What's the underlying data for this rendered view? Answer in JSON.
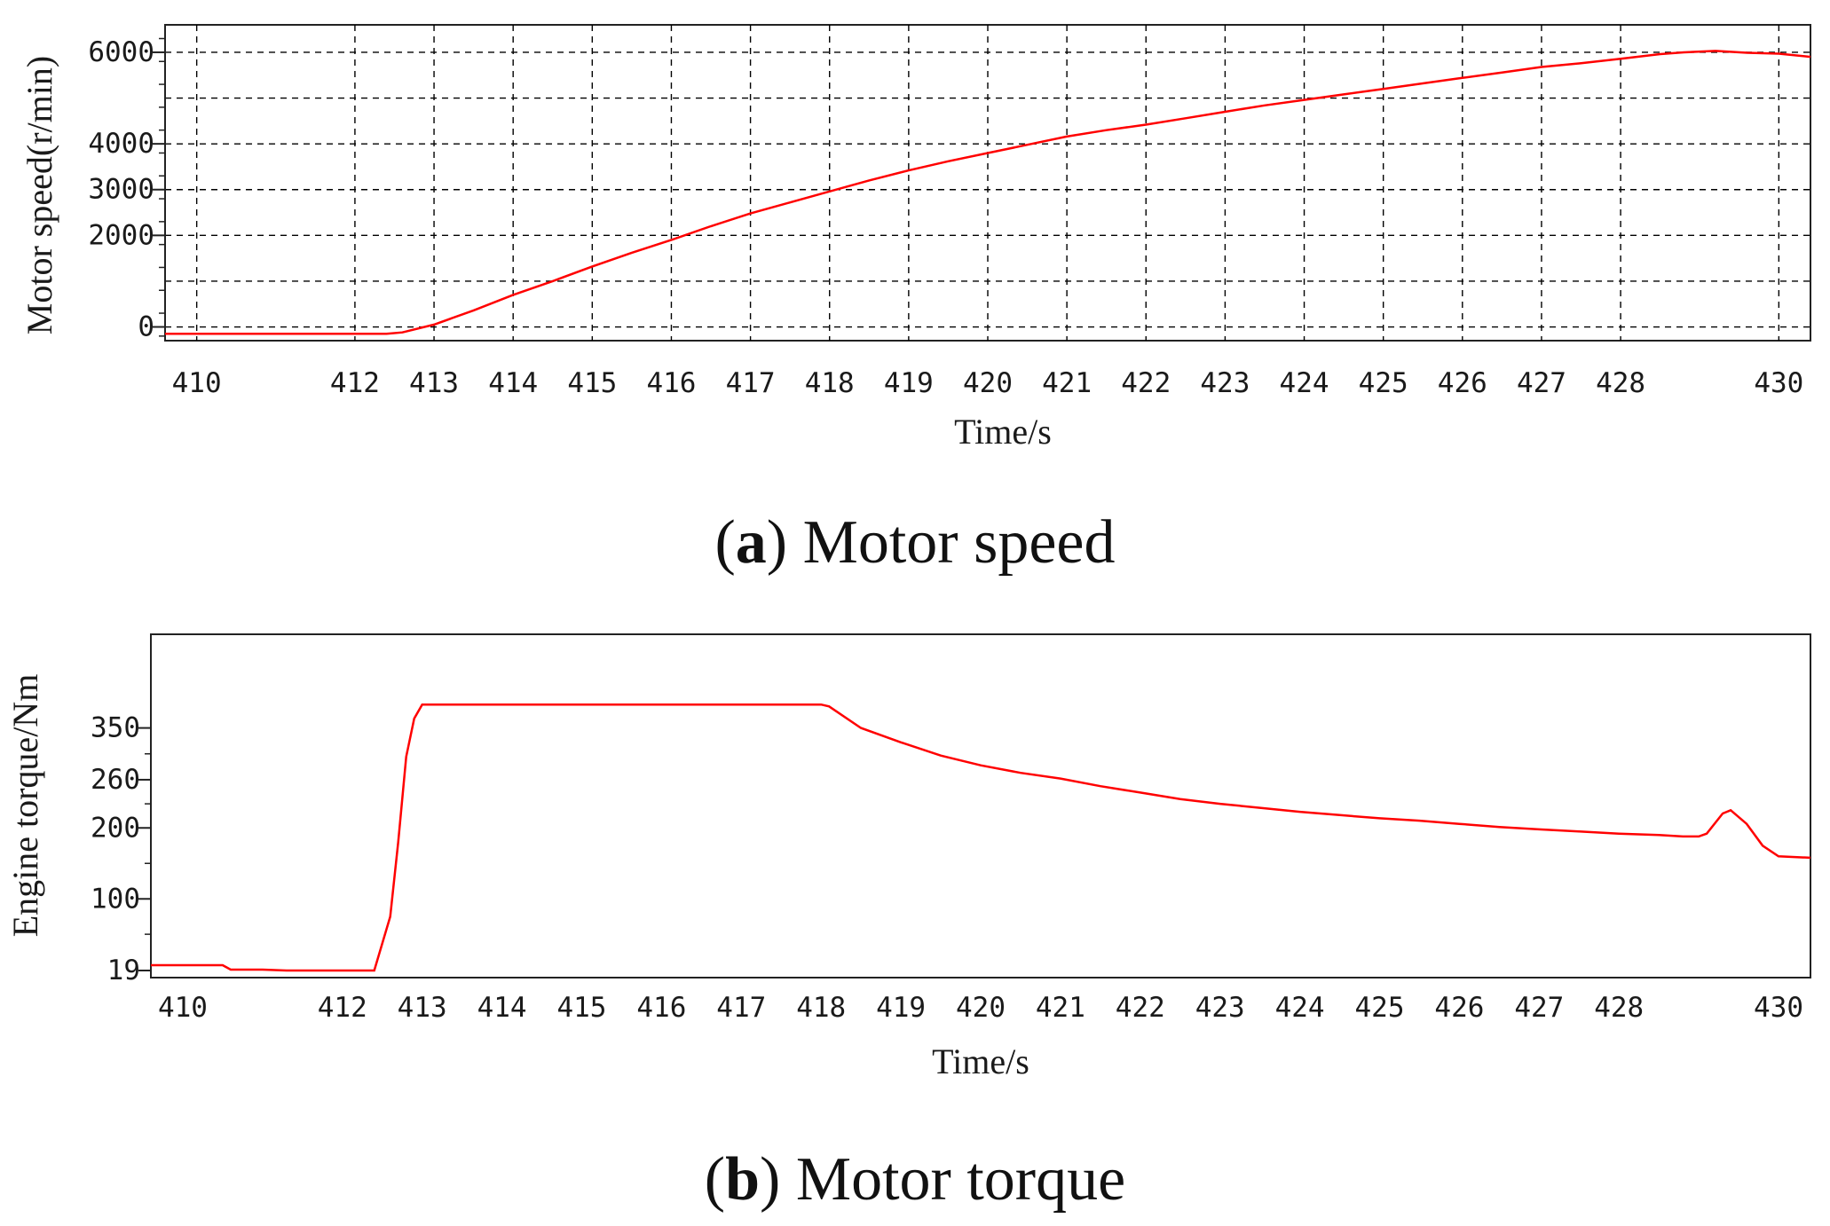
{
  "chart_data": [
    {
      "type": "line",
      "caption_letter": "a",
      "caption_text": "Motor speed",
      "xlabel": "Time/s",
      "ylabel": "Motor speed(r/min)",
      "xlim": [
        409.6,
        430.4
      ],
      "ylim": [
        -300,
        6600
      ],
      "x_ticks": [
        410,
        412,
        413,
        414,
        415,
        416,
        417,
        418,
        419,
        420,
        421,
        422,
        423,
        424,
        425,
        426,
        427,
        428,
        430
      ],
      "y_ticks": [
        0,
        2000,
        3000,
        4000,
        6000
      ],
      "grid": true,
      "color": "#ff0000",
      "series": [
        {
          "x": [
            409.6,
            410,
            411,
            412,
            412.4,
            412.6,
            413,
            413.5,
            414,
            414.5,
            415,
            415.5,
            416,
            416.5,
            417,
            417.5,
            418,
            418.5,
            419,
            419.5,
            420,
            420.5,
            421,
            421.5,
            422,
            422.5,
            423,
            423.5,
            424,
            424.5,
            425,
            425.5,
            426,
            426.5,
            427,
            427.5,
            428,
            428.5,
            428.8,
            429.2,
            429.6,
            430.0,
            430.4
          ],
          "y": [
            -150,
            -150,
            -150,
            -150,
            -150,
            -120,
            50,
            360,
            700,
            1000,
            1320,
            1620,
            1900,
            2200,
            2480,
            2720,
            2960,
            3200,
            3420,
            3620,
            3800,
            3980,
            4160,
            4300,
            4420,
            4560,
            4700,
            4840,
            4960,
            5080,
            5200,
            5320,
            5440,
            5560,
            5680,
            5760,
            5860,
            5960,
            6000,
            6030,
            5990,
            5970,
            5900
          ]
        }
      ]
    },
    {
      "type": "line",
      "caption_letter": "b",
      "caption_text": "Motor torque",
      "xlabel": "Time/s",
      "ylabel": "Engine torque/Nm",
      "xlim": [
        409.6,
        430.4
      ],
      "y_ticks": [
        19,
        100,
        200,
        260,
        350
      ],
      "grid": false,
      "color": "#ff0000",
      "x_ticks": [
        410,
        412,
        413,
        414,
        415,
        416,
        417,
        418,
        419,
        420,
        421,
        422,
        423,
        424,
        425,
        426,
        427,
        428,
        430
      ],
      "series": [
        {
          "x": [
            409.6,
            410.0,
            410.5,
            410.6,
            411.0,
            411.3,
            412.0,
            412.2,
            412.4,
            412.6,
            412.7,
            412.8,
            412.9,
            413.0,
            414,
            415,
            416,
            417,
            418.0,
            418.1,
            418.5,
            419,
            419.5,
            420,
            420.5,
            421,
            421.5,
            422,
            422.5,
            423,
            423.5,
            424,
            424.5,
            425,
            425.5,
            426,
            426.5,
            427,
            427.5,
            428,
            428.5,
            428.8,
            429.0,
            429.1,
            429.3,
            429.4,
            429.6,
            429.8,
            430.0,
            430.4
          ],
          "y": [
            25,
            25,
            25,
            20,
            20,
            17,
            15,
            15,
            15,
            80,
            180,
            300,
            360,
            375,
            375,
            375,
            375,
            375,
            375,
            373,
            350,
            325,
            302,
            285,
            272,
            262,
            252,
            244,
            236,
            230,
            225,
            220,
            216,
            212,
            209,
            205,
            201,
            198,
            195,
            192,
            190,
            188,
            188,
            192,
            218,
            222,
            205,
            175,
            160,
            158
          ]
        }
      ]
    }
  ]
}
